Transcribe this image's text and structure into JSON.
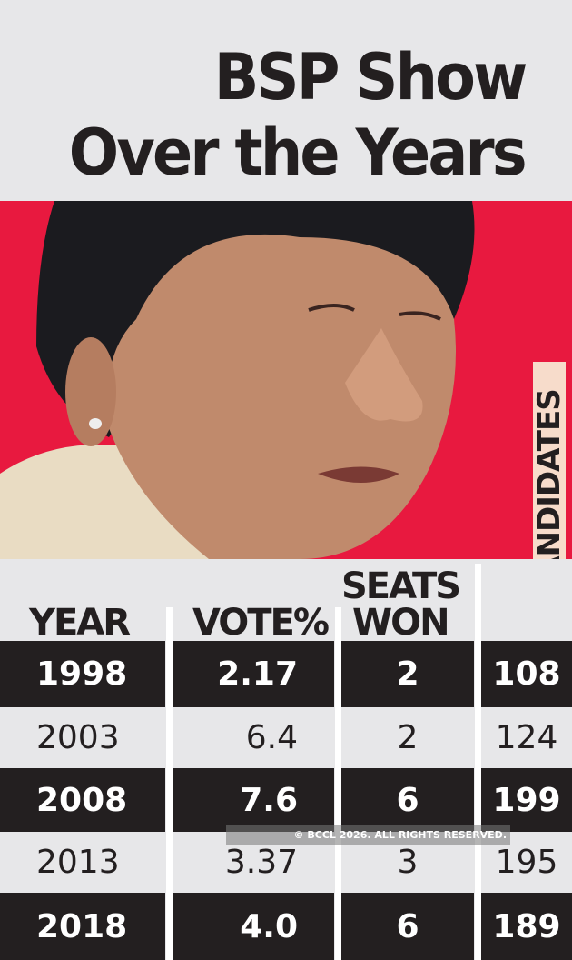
{
  "title": {
    "line1": "BSP Show",
    "line2": "Over the Years"
  },
  "colors": {
    "background": "#e7e7e9",
    "band": "#e8193f",
    "dark_row": "#231f20",
    "label_box": "#f7dccb"
  },
  "watermark": "© BCCL 2026. ALL RIGHTS RESERVED.",
  "chart_data": {
    "type": "table",
    "title": "BSP Show Over the Years",
    "columns": [
      "YEAR",
      "VOTE%",
      "SEATS WON",
      "CANDIDATES"
    ],
    "header": {
      "year": "YEAR",
      "vote": "VOTE%",
      "seats_1": "SEATS",
      "seats_2": "WON",
      "candidates": "CANDIDATES"
    },
    "rows": [
      {
        "year": "1998",
        "vote": "2.17",
        "seats": "2",
        "candidates": "108"
      },
      {
        "year": "2003",
        "vote": "6.4",
        "seats": "2",
        "candidates": "124"
      },
      {
        "year": "2008",
        "vote": "7.6",
        "seats": "6",
        "candidates": "199"
      },
      {
        "year": "2013",
        "vote": "3.37",
        "seats": "3",
        "candidates": "195"
      },
      {
        "year": "2018",
        "vote": "4.0",
        "seats": "6",
        "candidates": "189"
      }
    ]
  }
}
